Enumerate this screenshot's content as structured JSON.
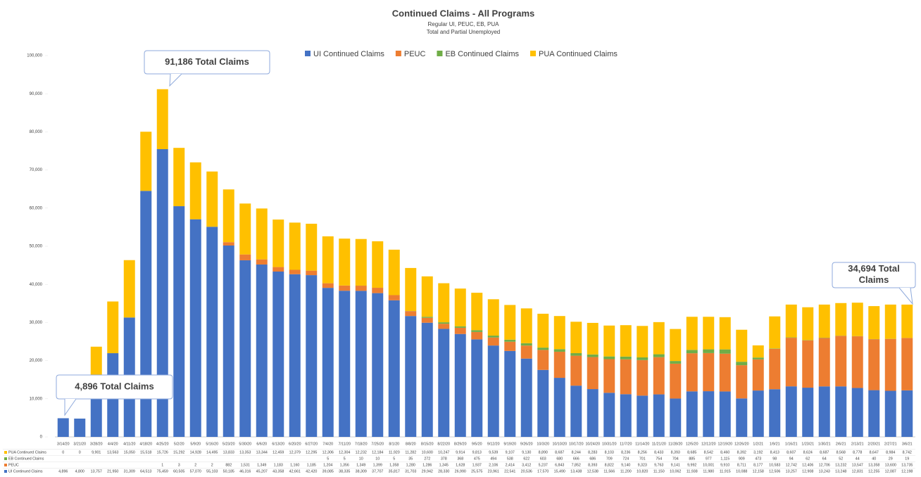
{
  "chart_data": {
    "type": "stacked_bar",
    "title": "Continued Claims - All Programs",
    "subtitle": [
      "Regular UI, PEUC, EB, PUA",
      "Total and Partial Unemployed"
    ],
    "categories": [
      "3/14/20",
      "3/21/20",
      "3/28/20",
      "4/4/20",
      "4/11/20",
      "4/18/20",
      "4/25/20",
      "5/2/20",
      "5/9/20",
      "5/16/20",
      "5/23/20",
      "5/30/20",
      "6/6/20",
      "6/13/20",
      "6/20/20",
      "6/27/20",
      "7/4/20",
      "7/11/20",
      "7/18/20",
      "7/25/20",
      "8/1/20",
      "8/8/20",
      "8/15/20",
      "8/22/20",
      "8/29/20",
      "9/5/20",
      "9/12/20",
      "9/19/20",
      "9/26/20",
      "10/3/20",
      "10/10/20",
      "10/17/20",
      "10/24/20",
      "10/31/20",
      "11/7/20",
      "11/14/20",
      "11/21/20",
      "11/28/20",
      "12/5/20",
      "12/12/20",
      "12/19/20",
      "12/26/20",
      "1/2/21",
      "1/9/21",
      "1/16/21",
      "1/23/21",
      "1/30/21",
      "2/6/21",
      "2/13/21",
      "2/20/21",
      "2/27/21",
      "3/6/21"
    ],
    "series": [
      {
        "name": "UI Continued Claims",
        "color": "#4472c4",
        "values": [
          4896,
          4800,
          13757,
          21950,
          31309,
          64513,
          75459,
          60505,
          57070,
          55103,
          50185,
          46316,
          45207,
          43358,
          42661,
          42420,
          39085,
          38335,
          38309,
          37707,
          35817,
          31703,
          29942,
          28330,
          26990,
          25575,
          23961,
          22541,
          20536,
          17570,
          15490,
          13438,
          12538,
          11566,
          11200,
          10820,
          11150,
          10062,
          11938,
          11980,
          11915,
          10088,
          12158,
          12506,
          13257,
          12908,
          13243,
          13248,
          12831,
          12255,
          12087,
          12198
        ],
        "value_labels": [
          "4,896",
          "4,800",
          "13,757",
          "21,950",
          "31,309",
          "64,513",
          "75,459",
          "60,505",
          "57,070",
          "55,103",
          "50,185",
          "46,316",
          "45,207",
          "43,358",
          "42,661",
          "42,420",
          "39,085",
          "38,335",
          "38,309",
          "37,707",
          "35,817",
          "31,703",
          "29,942",
          "28,330",
          "26,990",
          "25,575",
          "23,961",
          "22,541",
          "20,536",
          "17,570",
          "15,490",
          "13,438",
          "12,538",
          "11,566",
          "11,200",
          "10,820",
          "11,150",
          "10,062",
          "11,938",
          "11,980",
          "11,915",
          "10,088",
          "12,158",
          "12,506",
          "13,257",
          "12,908",
          "13,243",
          "13,248",
          "12,831",
          "12,255",
          "12,087",
          "12,198"
        ]
      },
      {
        "name": "PEUC",
        "color": "#ed7d31",
        "values": [
          null,
          null,
          null,
          null,
          null,
          null,
          1,
          3,
          2,
          2,
          882,
          1531,
          1349,
          1183,
          1160,
          1185,
          1204,
          1356,
          1349,
          1399,
          1358,
          1280,
          1286,
          1345,
          1628,
          1937,
          2106,
          2414,
          3412,
          5237,
          6843,
          7852,
          8393,
          8822,
          9140,
          9323,
          9763,
          9141,
          9992,
          10001,
          9910,
          8711,
          8177,
          10583,
          12742,
          12406,
          12706,
          13232,
          13547,
          13358,
          13600,
          13735
        ],
        "value_labels": [
          null,
          null,
          null,
          null,
          null,
          null,
          "1",
          "3",
          "2",
          "2",
          "882",
          "1,531",
          "1,349",
          "1,183",
          "1,160",
          "1,185",
          "1,204",
          "1,356",
          "1,349",
          "1,399",
          "1,358",
          "1,280",
          "1,286",
          "1,345",
          "1,628",
          "1,937",
          "2,106",
          "2,414",
          "3,412",
          "5,237",
          "6,843",
          "7,852",
          "8,393",
          "8,822",
          "9,140",
          "9,323",
          "9,763",
          "9,141",
          "9,992",
          "10,001",
          "9,910",
          "8,711",
          "8,177",
          "10,583",
          "12,742",
          "12,406",
          "12,706",
          "13,232",
          "13,547",
          "13,358",
          "13,600",
          "13,735"
        ]
      },
      {
        "name": "EB Continued Claims",
        "color": "#70ad47",
        "values": [
          null,
          null,
          null,
          null,
          null,
          null,
          null,
          null,
          null,
          null,
          null,
          null,
          null,
          null,
          null,
          null,
          5,
          5,
          10,
          10,
          5,
          35,
          272,
          378,
          368,
          475,
          494,
          538,
          622,
          603,
          680,
          666,
          686,
          709,
          724,
          701,
          754,
          704,
          885,
          977,
          1115,
          909,
          473,
          98,
          94,
          62,
          64,
          52,
          44,
          40,
          29,
          19
        ],
        "value_labels": [
          null,
          null,
          null,
          null,
          null,
          null,
          null,
          null,
          null,
          null,
          null,
          null,
          null,
          null,
          null,
          null,
          "5",
          "5",
          "10",
          "10",
          "5",
          "35",
          "272",
          "378",
          "368",
          "475",
          "494",
          "538",
          "622",
          "603",
          "680",
          "666",
          "686",
          "709",
          "724",
          "701",
          "754",
          "704",
          "885",
          "977",
          "1,115",
          "909",
          "473",
          "98",
          "94",
          "62",
          "64",
          "52",
          "44",
          "40",
          "29",
          "19"
        ]
      },
      {
        "name": "PUA Continued Claims",
        "color": "#ffc000",
        "values": [
          0,
          0,
          9901,
          13563,
          15050,
          15518,
          15726,
          15292,
          14928,
          14495,
          13833,
          13353,
          13344,
          12459,
          12379,
          12295,
          12306,
          12304,
          12232,
          12184,
          11920,
          11282,
          10600,
          10247,
          9914,
          9813,
          9539,
          9107,
          9130,
          8890,
          8687,
          8244,
          8283,
          8103,
          8236,
          8256,
          8433,
          8393,
          8685,
          8542,
          8460,
          8392,
          3192,
          8413,
          8607,
          8624,
          8687,
          8568,
          8778,
          8647,
          8984,
          8742
        ],
        "value_labels": [
          "0",
          "0",
          "9,901",
          "13,563",
          "15,050",
          "15,518",
          "15,726",
          "15,292",
          "14,928",
          "14,495",
          "13,833",
          "13,353",
          "13,344",
          "12,459",
          "12,379",
          "12,295",
          "12,306",
          "12,304",
          "12,232",
          "12,184",
          "11,920",
          "11,282",
          "10,600",
          "10,247",
          "9,914",
          "9,813",
          "9,539",
          "9,107",
          "9,130",
          "8,890",
          "8,687",
          "8,244",
          "8,283",
          "8,103",
          "8,236",
          "8,256",
          "8,433",
          "8,393",
          "8,685",
          "8,542",
          "8,460",
          "8,392",
          "3,192",
          "8,413",
          "8,607",
          "8,624",
          "8,687",
          "8,568",
          "8,778",
          "8,647",
          "8,984",
          "8,742"
        ]
      }
    ],
    "ylim": [
      0,
      100000
    ],
    "yticks": [
      0,
      {
        "value": 10000,
        "label": "10,000"
      },
      {
        "value": 20000,
        "label": "20,000"
      },
      {
        "value": 30000,
        "label": "30,000"
      },
      {
        "value": 40000,
        "label": "40,000"
      },
      {
        "value": 50000,
        "label": "50,000"
      },
      {
        "value": 60000,
        "label": "60,000"
      },
      {
        "value": 70000,
        "label": "70,000"
      },
      {
        "value": 80000,
        "label": "80,000"
      },
      {
        "value": 90000,
        "label": "90,000"
      },
      {
        "value": 100000,
        "label": "100,000"
      }
    ],
    "grid": false,
    "legend": "top",
    "annotations": [
      "4,896 Total Claims",
      "91,186 Total Claims",
      "34,694 Total Claims"
    ]
  }
}
